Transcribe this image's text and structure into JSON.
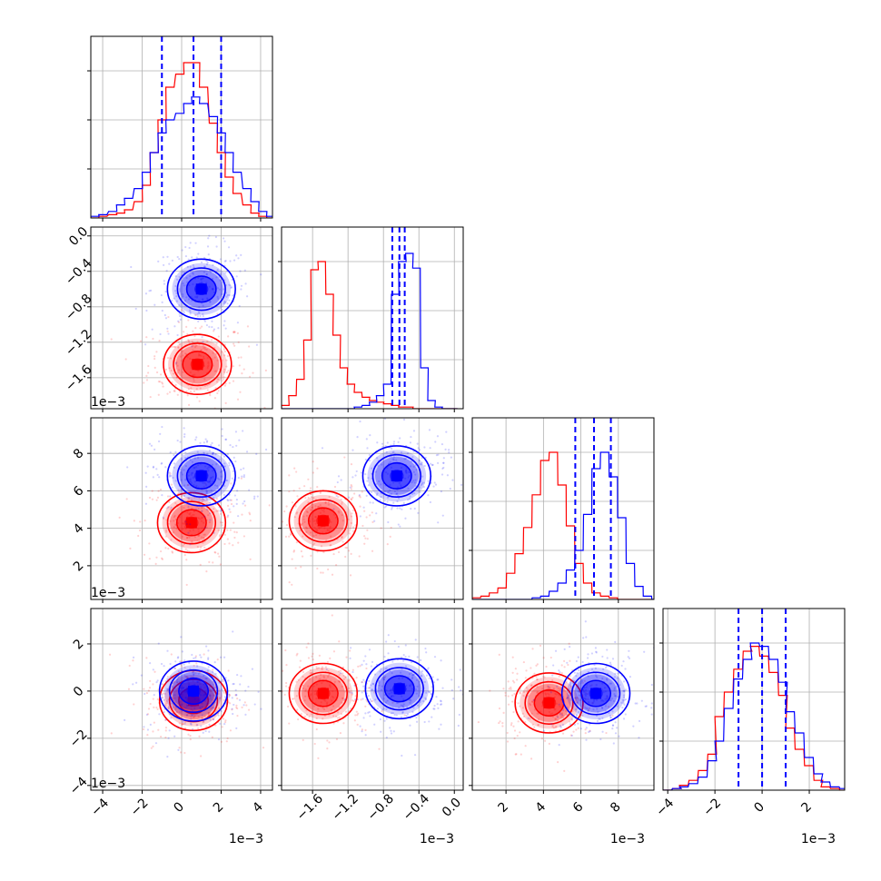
{
  "colors": {
    "series_a": "#ff0000",
    "series_b": "#0000ff",
    "grid": "#b0b0b0",
    "frame": "#000000"
  },
  "chart_data": {
    "type": "corner",
    "grid": true,
    "legend": "none",
    "parameters": [
      {
        "ticks": [
          -4,
          -2,
          0,
          2,
          4
        ],
        "tick_labels": [
          "−4",
          "−2",
          "0",
          "2",
          "4"
        ],
        "range": [
          -4.6,
          4.6
        ],
        "offset": "1e−3"
      },
      {
        "ticks": [
          -1.6,
          -1.2,
          -0.8,
          -0.4,
          0.0
        ],
        "tick_labels": [
          "−1.6",
          "−1.2",
          "−0.8",
          "−0.4",
          "0.0"
        ],
        "range": [
          -1.95,
          0.1
        ],
        "offset": "1e−3"
      },
      {
        "ticks": [
          2,
          4,
          6,
          8
        ],
        "tick_labels": [
          "2",
          "4",
          "6",
          "8"
        ],
        "range": [
          0.2,
          9.9
        ],
        "offset": "1e−3"
      },
      {
        "ticks": [
          -4,
          -2,
          0,
          2
        ],
        "tick_labels": [
          "−4",
          "−2",
          "0",
          "2"
        ],
        "range": [
          -4.2,
          3.5
        ],
        "offset": "1e−3"
      }
    ],
    "y_axis_labeled_params": [
      1,
      2,
      3
    ],
    "x_axis_labeled_params": [
      0,
      1,
      2,
      3
    ],
    "series": [
      {
        "color": "#ff0000",
        "marginals": [
          {
            "x": [
              -4.6,
              -4.2,
              -3.7,
              -3.3,
              -2.9,
              -2.4,
              -2.0,
              -1.6,
              -1.2,
              -0.8,
              -0.3,
              0.1,
              0.5,
              0.9,
              1.4,
              1.8,
              2.2,
              2.6,
              3.1,
              3.5,
              3.9,
              4.3
            ],
            "counts": [
              0,
              1,
              2,
              3,
              5,
              10,
              20,
              40,
              60,
              80,
              88,
              95,
              95,
              80,
              58,
              40,
              25,
              15,
              8,
              3,
              1,
              0
            ]
          },
          {
            "x": [
              -1.95,
              -1.87,
              -1.78,
              -1.7,
              -1.62,
              -1.54,
              -1.45,
              -1.37,
              -1.29,
              -1.21,
              -1.13,
              -1.04,
              -0.96,
              -0.88,
              -0.8,
              -0.71,
              -0.63,
              -0.55,
              -0.47,
              -0.38,
              -0.3,
              -0.22,
              -0.14,
              -0.05
            ],
            "counts": [
              2,
              8,
              18,
              42,
              85,
              90,
              70,
              45,
              25,
              15,
              10,
              7,
              5,
              4,
              3,
              2,
              1,
              1,
              0,
              0,
              0,
              0,
              0,
              0
            ]
          },
          {
            "x": [
              0.2,
              0.66,
              1.11,
              1.57,
              2.03,
              2.48,
              2.94,
              3.4,
              3.85,
              4.31,
              4.77,
              5.22,
              5.68,
              6.14,
              6.59,
              7.05,
              7.51,
              7.96,
              8.42,
              8.88,
              9.33,
              9.79
            ],
            "counts": [
              1,
              2,
              4,
              7,
              16,
              28,
              44,
              64,
              85,
              90,
              70,
              45,
              22,
              10,
              4,
              2,
              1,
              0,
              0,
              0,
              0,
              0
            ]
          },
          {
            "x": [
              -4.2,
              -3.8,
              -3.5,
              -3.1,
              -2.7,
              -2.3,
              -2.0,
              -1.6,
              -1.2,
              -0.8,
              -0.5,
              -0.1,
              0.3,
              0.7,
              1.0,
              1.4,
              1.8,
              2.2,
              2.5,
              2.9,
              3.3
            ],
            "counts": [
              0,
              1,
              3,
              6,
              12,
              22,
              45,
              60,
              74,
              85,
              88,
              82,
              72,
              58,
              38,
              25,
              15,
              6,
              2,
              1,
              0
            ]
          }
        ],
        "joint_centers": {
          "1-0": [
            0.8,
            -1.45
          ],
          "2-0": [
            0.5,
            4.3
          ],
          "2-1": [
            -1.48,
            4.4
          ],
          "3-0": [
            0.6,
            -0.4
          ],
          "3-1": [
            -1.48,
            -0.1
          ],
          "3-2": [
            4.3,
            -0.5
          ]
        }
      },
      {
        "color": "#0000ff",
        "marginals": [
          {
            "x": [
              -4.6,
              -4.2,
              -3.7,
              -3.3,
              -2.9,
              -2.4,
              -2.0,
              -1.6,
              -1.2,
              -0.8,
              -0.3,
              0.1,
              0.5,
              0.9,
              1.4,
              1.8,
              2.2,
              2.6,
              3.1,
              3.5,
              3.9,
              4.3
            ],
            "counts": [
              1,
              2,
              4,
              8,
              12,
              18,
              28,
              40,
              52,
              60,
              64,
              70,
              74,
              70,
              62,
              52,
              40,
              28,
              18,
              10,
              4,
              1
            ]
          },
          {
            "x": [
              -1.95,
              -1.87,
              -1.78,
              -1.7,
              -1.62,
              -1.54,
              -1.45,
              -1.37,
              -1.29,
              -1.21,
              -1.13,
              -1.04,
              -0.96,
              -0.88,
              -0.8,
              -0.71,
              -0.63,
              -0.55,
              -0.47,
              -0.38,
              -0.3,
              -0.22,
              -0.14,
              -0.05
            ],
            "counts": [
              0,
              0,
              0,
              0,
              0,
              0,
              0,
              0,
              0,
              0,
              1,
              2,
              4,
              8,
              15,
              70,
              90,
              95,
              86,
              25,
              5,
              1,
              0,
              0
            ]
          },
          {
            "x": [
              0.2,
              0.66,
              1.11,
              1.57,
              2.03,
              2.48,
              2.94,
              3.4,
              3.85,
              4.31,
              4.77,
              5.22,
              5.68,
              6.14,
              6.59,
              7.05,
              7.51,
              7.96,
              8.42,
              8.88,
              9.33,
              9.79
            ],
            "counts": [
              0,
              0,
              0,
              0,
              0,
              0,
              0,
              1,
              2,
              5,
              10,
              18,
              30,
              52,
              80,
              90,
              75,
              50,
              22,
              8,
              2,
              0
            ]
          },
          {
            "x": [
              -4.2,
              -3.8,
              -3.5,
              -3.1,
              -2.7,
              -2.3,
              -2.0,
              -1.6,
              -1.2,
              -0.8,
              -0.5,
              -0.1,
              0.3,
              0.7,
              1.0,
              1.4,
              1.8,
              2.2,
              2.5,
              2.9,
              3.3
            ],
            "counts": [
              0,
              1,
              2,
              4,
              8,
              18,
              30,
              50,
              68,
              80,
              90,
              88,
              80,
              66,
              48,
              35,
              20,
              10,
              5,
              2,
              1
            ]
          }
        ],
        "quantiles": [
          [
            -1.0,
            0.6,
            2.0
          ],
          [
            -0.7,
            -0.62,
            -0.56
          ],
          [
            5.7,
            6.7,
            7.6
          ],
          [
            -1.0,
            0.0,
            1.0
          ]
        ],
        "joint_centers": {
          "1-0": [
            1.0,
            -0.6
          ],
          "2-0": [
            1.0,
            6.8
          ],
          "2-1": [
            -0.65,
            6.8
          ],
          "3-0": [
            0.6,
            0.0
          ],
          "3-1": [
            -0.62,
            0.1
          ],
          "3-2": [
            6.8,
            -0.1
          ]
        }
      }
    ]
  }
}
